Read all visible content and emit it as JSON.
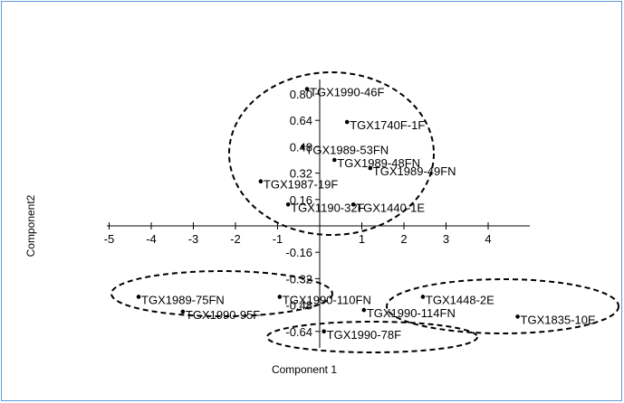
{
  "chart_data": {
    "type": "scatter",
    "xlabel": "Component 1",
    "ylabel": "Component2",
    "xlim": [
      -5,
      5
    ],
    "ylim": [
      -0.72,
      0.9
    ],
    "x_ticks": [
      "-5",
      "-4",
      "-3",
      "-2",
      "-1",
      "1",
      "2",
      "3",
      "4"
    ],
    "y_ticks": [
      "0.80",
      "0.64",
      "0.48",
      "0.32",
      "0.16",
      "-0.16",
      "-0.32",
      "-0.48",
      "-0.64"
    ],
    "grid": false,
    "points": [
      {
        "label": "TGX1990-46F",
        "x": -0.3,
        "y": 0.83
      },
      {
        "label": "TGX1740F-1F",
        "x": 0.65,
        "y": 0.63
      },
      {
        "label": "TGX1989-53FN",
        "x": -0.4,
        "y": 0.48
      },
      {
        "label": "TGX1989-48FN",
        "x": 0.35,
        "y": 0.4
      },
      {
        "label": "TGX1989-49FN",
        "x": 1.2,
        "y": 0.35
      },
      {
        "label": "TGX1987-19F",
        "x": -1.4,
        "y": 0.27
      },
      {
        "label": "TGX1440-1E",
        "x": 0.8,
        "y": 0.13
      },
      {
        "label": "TGX1190-32F",
        "x": -0.75,
        "y": 0.13
      },
      {
        "label": "TGX1989-75FN",
        "x": -4.3,
        "y": -0.43
      },
      {
        "label": "TGX1990-95F",
        "x": -3.25,
        "y": -0.52
      },
      {
        "label": "TGX1990-110FN",
        "x": -0.95,
        "y": -0.43
      },
      {
        "label": "TGX1448-2E",
        "x": 2.45,
        "y": -0.43
      },
      {
        "label": "TGX1990-114FN",
        "x": 1.05,
        "y": -0.51
      },
      {
        "label": "TGX1835-10E",
        "x": 4.7,
        "y": -0.55
      },
      {
        "label": "TGX1990-78F",
        "x": 0.1,
        "y": -0.64
      }
    ]
  }
}
